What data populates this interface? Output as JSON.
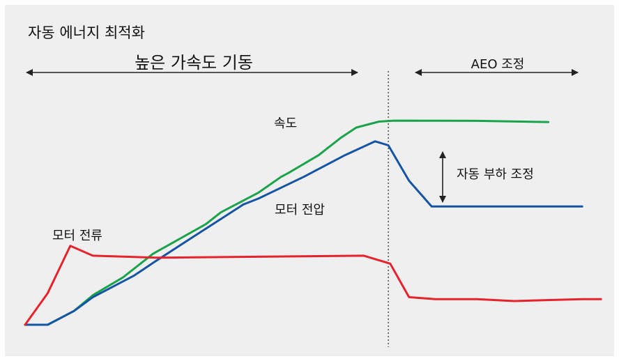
{
  "title": "자동 에너지 최적화",
  "phases": {
    "start_label": "높은 가속도 기동",
    "aeo_label": "AEO 조정"
  },
  "annotations": {
    "load_adjust": "자동 부하 조정"
  },
  "series": [
    {
      "id": "speed",
      "name": "속도",
      "color": "#1aa34a",
      "points": [
        [
          0,
          0
        ],
        [
          1.2,
          0
        ],
        [
          2.6,
          0.07
        ],
        [
          3.6,
          0.15
        ],
        [
          5.2,
          0.24
        ],
        [
          6.8,
          0.36
        ],
        [
          9.6,
          0.51
        ],
        [
          10.4,
          0.57
        ],
        [
          12.4,
          0.67
        ],
        [
          13.6,
          0.75
        ],
        [
          14.0,
          0.77
        ],
        [
          15.6,
          0.86
        ],
        [
          16.8,
          0.95
        ],
        [
          17.6,
          1.0
        ],
        [
          18.8,
          1.03
        ],
        [
          19.6,
          1.035
        ],
        [
          24.0,
          1.034
        ],
        [
          27.8,
          1.028
        ]
      ]
    },
    {
      "id": "voltage",
      "name": "모터 전압",
      "color": "#1554a3",
      "points": [
        [
          0,
          0
        ],
        [
          1.2,
          0
        ],
        [
          2.6,
          0.07
        ],
        [
          3.6,
          0.14
        ],
        [
          5.8,
          0.25
        ],
        [
          6.9,
          0.32
        ],
        [
          9.0,
          0.45
        ],
        [
          11.6,
          0.61
        ],
        [
          12.4,
          0.64
        ],
        [
          14.8,
          0.75
        ],
        [
          17.0,
          0.86
        ],
        [
          18.6,
          0.93
        ],
        [
          19.3,
          0.91
        ],
        [
          20.4,
          0.73
        ],
        [
          21.6,
          0.6
        ],
        [
          24.0,
          0.6
        ],
        [
          29.6,
          0.6
        ]
      ]
    },
    {
      "id": "current",
      "name": "모터 전류",
      "color": "#e5232c",
      "points": [
        [
          0,
          0
        ],
        [
          1.2,
          0.16
        ],
        [
          2.4,
          0.4
        ],
        [
          3.6,
          0.35
        ],
        [
          7.0,
          0.34
        ],
        [
          18.0,
          0.35
        ],
        [
          19.4,
          0.31
        ],
        [
          20.4,
          0.14
        ],
        [
          21.8,
          0.13
        ],
        [
          24.0,
          0.13
        ],
        [
          26.0,
          0.12
        ],
        [
          29.6,
          0.13
        ],
        [
          30.6,
          0.13
        ]
      ]
    }
  ],
  "divider_x": 19.3,
  "legend_colors": {
    "arrow": "#222222",
    "divider": "#333333"
  }
}
